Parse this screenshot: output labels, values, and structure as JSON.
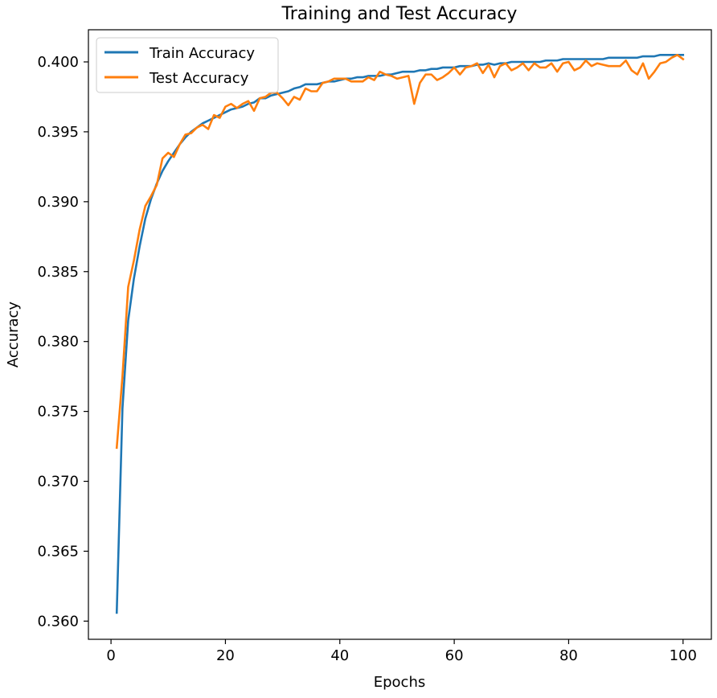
{
  "chart_data": {
    "type": "line",
    "title": "Training and Test Accuracy",
    "xlabel": "Epochs",
    "ylabel": "Accuracy",
    "xlim": [
      -3.95,
      104.95
    ],
    "ylim": [
      0.3587,
      0.4023
    ],
    "x_ticks": [
      0,
      20,
      40,
      60,
      80,
      100
    ],
    "y_ticks": [
      0.36,
      0.365,
      0.37,
      0.375,
      0.38,
      0.385,
      0.39,
      0.395,
      0.4
    ],
    "y_tick_labels": [
      "0.360",
      "0.365",
      "0.370",
      "0.375",
      "0.380",
      "0.385",
      "0.390",
      "0.395",
      "0.400"
    ],
    "grid": false,
    "legend_position": "top-left",
    "x": [
      1,
      2,
      3,
      4,
      5,
      6,
      7,
      8,
      9,
      10,
      11,
      12,
      13,
      14,
      15,
      16,
      17,
      18,
      19,
      20,
      21,
      22,
      23,
      24,
      25,
      26,
      27,
      28,
      29,
      30,
      31,
      32,
      33,
      34,
      35,
      36,
      37,
      38,
      39,
      40,
      41,
      42,
      43,
      44,
      45,
      46,
      47,
      48,
      49,
      50,
      51,
      52,
      53,
      54,
      55,
      56,
      57,
      58,
      59,
      60,
      61,
      62,
      63,
      64,
      65,
      66,
      67,
      68,
      69,
      70,
      71,
      72,
      73,
      74,
      75,
      76,
      77,
      78,
      79,
      80,
      81,
      82,
      83,
      84,
      85,
      86,
      87,
      88,
      89,
      90,
      91,
      92,
      93,
      94,
      95,
      96,
      97,
      98,
      99,
      100
    ],
    "series": [
      {
        "name": "Train Accuracy",
        "color": "#1f77b4",
        "values": [
          0.3606,
          0.3752,
          0.3815,
          0.3845,
          0.3868,
          0.3888,
          0.3902,
          0.3913,
          0.3922,
          0.3929,
          0.3935,
          0.3941,
          0.3946,
          0.395,
          0.3953,
          0.3956,
          0.3958,
          0.396,
          0.3962,
          0.3964,
          0.3966,
          0.3967,
          0.3968,
          0.397,
          0.3971,
          0.3974,
          0.3974,
          0.3976,
          0.3977,
          0.3978,
          0.3979,
          0.3981,
          0.3982,
          0.3984,
          0.3984,
          0.3984,
          0.3985,
          0.3986,
          0.3986,
          0.3987,
          0.3988,
          0.3988,
          0.3989,
          0.3989,
          0.399,
          0.399,
          0.399,
          0.3991,
          0.3991,
          0.3992,
          0.3993,
          0.3993,
          0.3993,
          0.3994,
          0.3994,
          0.3995,
          0.3995,
          0.3996,
          0.3996,
          0.3996,
          0.3997,
          0.3997,
          0.3997,
          0.3998,
          0.3998,
          0.3999,
          0.3998,
          0.3999,
          0.3999,
          0.4,
          0.4,
          0.4,
          0.4,
          0.4,
          0.4,
          0.4001,
          0.4001,
          0.4001,
          0.4002,
          0.4002,
          0.4002,
          0.4002,
          0.4002,
          0.4002,
          0.4002,
          0.4002,
          0.4003,
          0.4003,
          0.4003,
          0.4003,
          0.4003,
          0.4003,
          0.4004,
          0.4004,
          0.4004,
          0.4005,
          0.4005,
          0.4005,
          0.4005,
          0.4005
        ]
      },
      {
        "name": "Test Accuracy",
        "color": "#ff7f0e",
        "values": [
          0.3724,
          0.3775,
          0.3839,
          0.3858,
          0.388,
          0.3897,
          0.3904,
          0.3912,
          0.3931,
          0.3935,
          0.3932,
          0.3941,
          0.3948,
          0.3949,
          0.3953,
          0.3955,
          0.3952,
          0.3962,
          0.396,
          0.3968,
          0.397,
          0.3967,
          0.397,
          0.3972,
          0.3965,
          0.3974,
          0.3975,
          0.3978,
          0.3978,
          0.3974,
          0.3969,
          0.3975,
          0.3973,
          0.3981,
          0.3979,
          0.3979,
          0.3985,
          0.3986,
          0.3988,
          0.3988,
          0.3988,
          0.3986,
          0.3986,
          0.3986,
          0.3989,
          0.3987,
          0.3993,
          0.3991,
          0.399,
          0.3988,
          0.3989,
          0.399,
          0.397,
          0.3985,
          0.3991,
          0.3991,
          0.3987,
          0.3989,
          0.3992,
          0.3996,
          0.3991,
          0.3996,
          0.3997,
          0.3999,
          0.3992,
          0.3998,
          0.3989,
          0.3997,
          0.3999,
          0.3994,
          0.3996,
          0.3999,
          0.3994,
          0.3999,
          0.3996,
          0.3996,
          0.3999,
          0.3993,
          0.3999,
          0.4,
          0.3994,
          0.3996,
          0.4001,
          0.3997,
          0.3999,
          0.3998,
          0.3997,
          0.3997,
          0.3997,
          0.4001,
          0.3994,
          0.3991,
          0.3999,
          0.3988,
          0.3993,
          0.3999,
          0.4,
          0.4003,
          0.4005,
          0.4002
        ]
      }
    ]
  }
}
